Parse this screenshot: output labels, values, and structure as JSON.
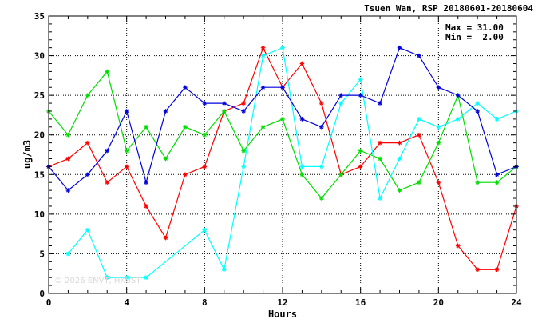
{
  "header": {
    "title": "Tsuen Wan, RSP 20180601-20180604"
  },
  "stats": {
    "max_text": "Max = 31.00",
    "min_text": "Min =  2.00"
  },
  "watermark": "© 2026  ENVT, HKUST",
  "chart_data": {
    "type": "line",
    "xlabel": "Hours",
    "ylabel": "ug/m3",
    "xlim": [
      0,
      24
    ],
    "ylim": [
      0,
      35
    ],
    "xticks": [
      0,
      4,
      8,
      12,
      16,
      20,
      24
    ],
    "yticks": [
      0,
      5,
      10,
      15,
      20,
      25,
      30,
      35
    ],
    "grid": true,
    "series": [
      {
        "color": "#ff0000",
        "points": [
          [
            0,
            16
          ],
          [
            1,
            17
          ],
          [
            2,
            19
          ],
          [
            3,
            14
          ],
          [
            4,
            16
          ],
          [
            5,
            11
          ],
          [
            6,
            7
          ],
          [
            7,
            15
          ],
          [
            8,
            16
          ],
          [
            9,
            23
          ],
          [
            10,
            24
          ],
          [
            11,
            31
          ],
          [
            12,
            26
          ],
          [
            13,
            29
          ],
          [
            14,
            24
          ],
          [
            15,
            15
          ],
          [
            16,
            16
          ],
          [
            17,
            19
          ],
          [
            18,
            19
          ],
          [
            19,
            20
          ],
          [
            20,
            14
          ],
          [
            21,
            6
          ],
          [
            22,
            3
          ],
          [
            23,
            3
          ],
          [
            24,
            11
          ]
        ]
      },
      {
        "color": "#00dd00",
        "points": [
          [
            0,
            23
          ],
          [
            1,
            20
          ],
          [
            2,
            25
          ],
          [
            3,
            28
          ],
          [
            4,
            18
          ],
          [
            5,
            21
          ],
          [
            6,
            17
          ],
          [
            7,
            21
          ],
          [
            8,
            20
          ],
          [
            9,
            23
          ],
          [
            10,
            18
          ],
          [
            11,
            21
          ],
          [
            12,
            22
          ],
          [
            13,
            15
          ],
          [
            14,
            12
          ],
          [
            15,
            15
          ],
          [
            16,
            18
          ],
          [
            17,
            17
          ],
          [
            18,
            13
          ],
          [
            19,
            14
          ],
          [
            20,
            19
          ],
          [
            21,
            25
          ],
          [
            22,
            14
          ],
          [
            23,
            14
          ],
          [
            24,
            16
          ]
        ]
      },
      {
        "color": "#00ffff",
        "points": [
          [
            1,
            5
          ],
          [
            2,
            8
          ],
          [
            3,
            2
          ],
          [
            4,
            2
          ],
          [
            5,
            2
          ],
          [
            8,
            8
          ],
          [
            9,
            3
          ],
          [
            10,
            16
          ],
          [
            11,
            30
          ],
          [
            12,
            31
          ],
          [
            13,
            16
          ],
          [
            14,
            16
          ],
          [
            15,
            24
          ],
          [
            16,
            27
          ],
          [
            17,
            12
          ],
          [
            18,
            17
          ],
          [
            19,
            22
          ],
          [
            20,
            21
          ],
          [
            21,
            22
          ],
          [
            22,
            24
          ],
          [
            23,
            22
          ],
          [
            24,
            23
          ]
        ]
      },
      {
        "color": "#0000dd",
        "points": [
          [
            0,
            16
          ],
          [
            1,
            13
          ],
          [
            2,
            15
          ],
          [
            3,
            18
          ],
          [
            4,
            23
          ],
          [
            5,
            14
          ],
          [
            6,
            23
          ],
          [
            7,
            26
          ],
          [
            8,
            24
          ],
          [
            9,
            24
          ],
          [
            10,
            23
          ],
          [
            11,
            26
          ],
          [
            12,
            26
          ],
          [
            13,
            22
          ],
          [
            14,
            21
          ],
          [
            15,
            25
          ],
          [
            16,
            25
          ],
          [
            17,
            24
          ],
          [
            18,
            31
          ],
          [
            19,
            30
          ],
          [
            20,
            26
          ],
          [
            21,
            25
          ],
          [
            22,
            23
          ],
          [
            23,
            15
          ],
          [
            24,
            16
          ]
        ]
      }
    ]
  }
}
